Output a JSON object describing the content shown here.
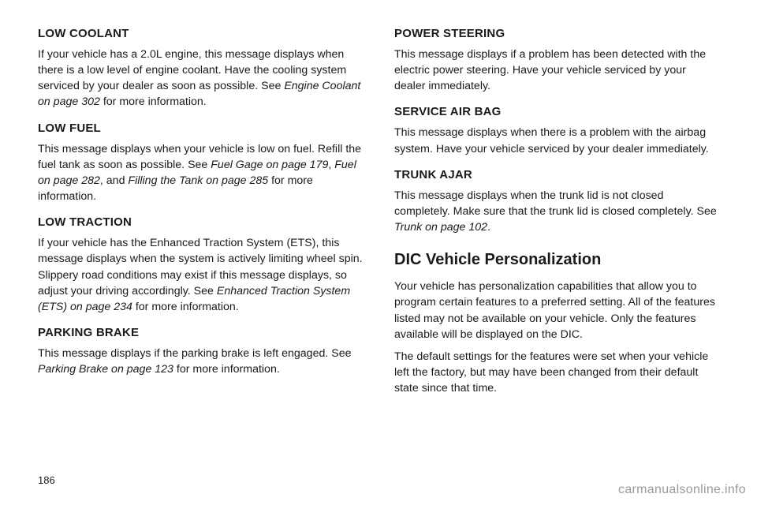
{
  "left": {
    "h1": "LOW COOLANT",
    "p1a": "If your vehicle has a 2.0L engine, this message displays when there is a low level of engine coolant. Have the cooling system serviced by your dealer as soon as possible. See ",
    "p1i": "Engine Coolant on page 302",
    "p1b": " for more information.",
    "h2": "LOW FUEL",
    "p2a": "This message displays when your vehicle is low on fuel. Refill the fuel tank as soon as possible. See ",
    "p2i1": "Fuel Gage on page 179",
    "p2m1": ", ",
    "p2i2": "Fuel on page 282",
    "p2m2": ", and ",
    "p2i3": "Filling the Tank on page 285",
    "p2b": " for more information.",
    "h3": "LOW TRACTION",
    "p3a": "If your vehicle has the Enhanced Traction System (ETS), this message displays when the system is actively limiting wheel spin. Slippery road conditions may exist if this message displays, so adjust your driving accordingly. See ",
    "p3i": "Enhanced Traction System (ETS) on page 234",
    "p3b": " for more information.",
    "h4": "PARKING BRAKE",
    "p4a": "This message displays if the parking brake is left engaged. See ",
    "p4i": "Parking Brake on page 123",
    "p4b": " for more information."
  },
  "right": {
    "h1": "POWER STEERING",
    "p1": "This message displays if a problem has been detected with the electric power steering. Have your vehicle serviced by your dealer immediately.",
    "h2": "SERVICE AIR BAG",
    "p2": "This message displays when there is a problem with the airbag system. Have your vehicle serviced by your dealer immediately.",
    "h3": "TRUNK AJAR",
    "p3a": "This message displays when the trunk lid is not closed completely. Make sure that the trunk lid is closed completely. See ",
    "p3i": "Trunk on page 102",
    "p3b": ".",
    "section": "DIC Vehicle Personalization",
    "p4": "Your vehicle has personalization capabilities that allow you to program certain features to a preferred setting. All of the features listed may not be available on your vehicle. Only the features available will be displayed on the DIC.",
    "p5": "The default settings for the features were set when your vehicle left the factory, but may have been changed from their default state since that time."
  },
  "pagenum": "186",
  "watermark": "carmanualsonline.info"
}
